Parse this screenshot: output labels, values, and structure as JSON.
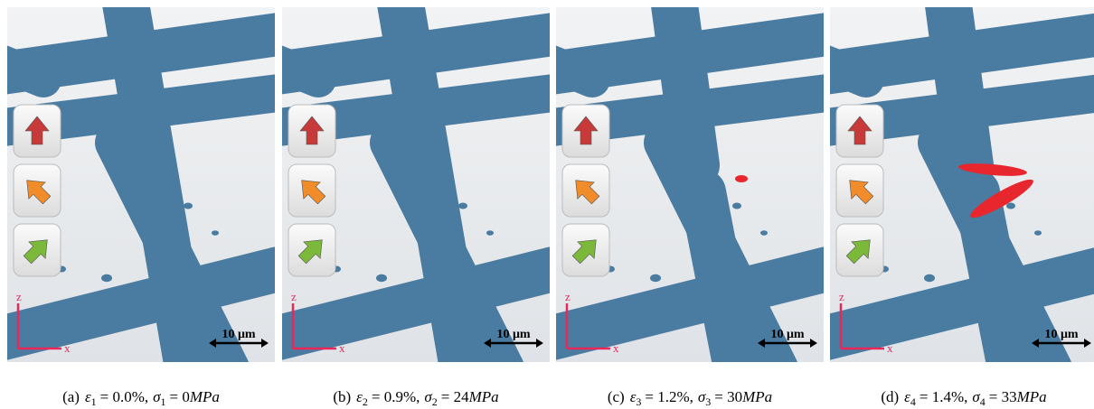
{
  "panels": [
    {
      "label": "(a)",
      "strain_symbol": "ε",
      "strain_index": "1",
      "strain": "= 0.0%,",
      "stress_symbol": "σ",
      "stress_index": "1",
      "stress": "= 0",
      "stress_unit": "MPa",
      "axis_z": "z",
      "axis_x": "x",
      "scale_bar": "10 μm"
    },
    {
      "label": "(b)",
      "strain_symbol": "ε",
      "strain_index": "2",
      "strain": "= 0.9%,",
      "stress_symbol": "σ",
      "stress_index": "2",
      "stress": "= 24",
      "stress_unit": "MPa",
      "axis_z": "z",
      "axis_x": "x",
      "scale_bar": "10 μm"
    },
    {
      "label": "(c)",
      "strain_symbol": "ε",
      "strain_index": "3",
      "strain": "= 1.2%,",
      "stress_symbol": "σ",
      "stress_index": "3",
      "stress": "= 30",
      "stress_unit": "MPa",
      "axis_z": "z",
      "axis_x": "x",
      "scale_bar": "10 μm"
    },
    {
      "label": "(d)",
      "strain_symbol": "ε",
      "strain_index": "4",
      "strain": "= 1.4%,",
      "stress_symbol": "σ",
      "stress_index": "4",
      "stress": "= 33",
      "stress_unit": "MPa",
      "axis_z": "z",
      "axis_x": "x",
      "scale_bar": "10 μm"
    }
  ]
}
